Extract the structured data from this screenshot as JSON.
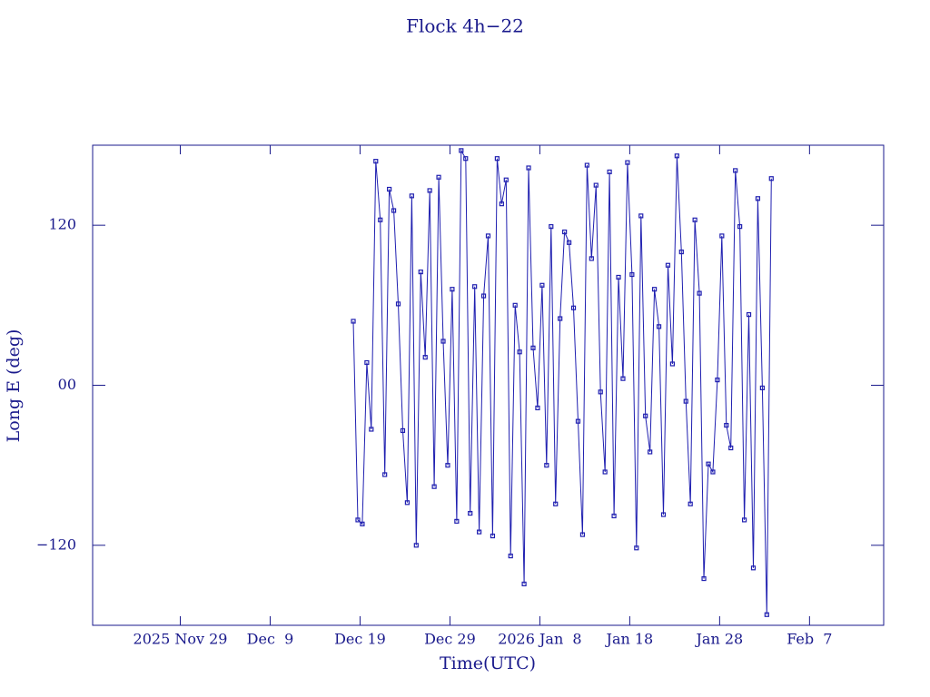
{
  "chart_data": {
    "type": "line",
    "title": "Flock 4h−22",
    "xlabel": "Time(UTC)",
    "ylabel": "Long E (deg)",
    "color": "#1f1fb0",
    "xlim": [
      "2025-11-19 06:00",
      "2026-02-15 06:00"
    ],
    "xticks": [
      {
        "value": "2025-11-29 00:00",
        "label": "2025 Nov 29"
      },
      {
        "value": "2025-12-09 00:00",
        "label": "Dec  9"
      },
      {
        "value": "2025-12-19 00:00",
        "label": "Dec 19"
      },
      {
        "value": "2025-12-29 00:00",
        "label": "Dec 29"
      },
      {
        "value": "2026-01-08 00:00",
        "label": "2026 Jan  8"
      },
      {
        "value": "2026-01-18 00:00",
        "label": "Jan 18"
      },
      {
        "value": "2026-01-28 00:00",
        "label": "Jan 28"
      },
      {
        "value": "2026-02-07 00:00",
        "label": "Feb  7"
      }
    ],
    "ylim": [
      -180,
      180
    ],
    "yticks": [
      {
        "value": -120,
        "label": "−120"
      },
      {
        "value": 0,
        "label": "00"
      },
      120
    ],
    "x": [
      "2025-12-18 06:00",
      "2025-12-18 18:00",
      "2025-12-19 06:00",
      "2025-12-19 18:00",
      "2025-12-20 06:00",
      "2025-12-20 18:00",
      "2025-12-21 06:00",
      "2025-12-21 18:00",
      "2025-12-22 06:00",
      "2025-12-22 18:00",
      "2025-12-23 06:00",
      "2025-12-23 18:00",
      "2025-12-24 06:00",
      "2025-12-24 18:00",
      "2025-12-25 06:00",
      "2025-12-25 18:00",
      "2025-12-26 06:00",
      "2025-12-26 18:00",
      "2025-12-27 06:00",
      "2025-12-27 18:00",
      "2025-12-28 06:00",
      "2025-12-28 18:00",
      "2025-12-29 06:00",
      "2025-12-29 18:00",
      "2025-12-30 06:00",
      "2025-12-30 18:00",
      "2025-12-31 06:00",
      "2025-12-31 18:00",
      "2026-01-01 06:00",
      "2026-01-01 18:00",
      "2026-01-02 06:00",
      "2026-01-02 18:00",
      "2026-01-03 06:00",
      "2026-01-03 18:00",
      "2026-01-04 06:00",
      "2026-01-04 18:00",
      "2026-01-05 06:00",
      "2026-01-05 18:00",
      "2026-01-06 06:00",
      "2026-01-06 18:00",
      "2026-01-07 06:00",
      "2026-01-07 18:00",
      "2026-01-08 06:00",
      "2026-01-08 18:00",
      "2026-01-09 06:00",
      "2026-01-09 18:00",
      "2026-01-10 06:00",
      "2026-01-10 18:00",
      "2026-01-11 06:00",
      "2026-01-11 18:00",
      "2026-01-12 06:00",
      "2026-01-12 18:00",
      "2026-01-13 06:00",
      "2026-01-13 18:00",
      "2026-01-14 06:00",
      "2026-01-14 18:00",
      "2026-01-15 06:00",
      "2026-01-15 18:00",
      "2026-01-16 06:00",
      "2026-01-16 18:00",
      "2026-01-17 06:00",
      "2026-01-17 18:00",
      "2026-01-18 06:00",
      "2026-01-18 18:00",
      "2026-01-19 06:00",
      "2026-01-19 18:00",
      "2026-01-20 06:00",
      "2026-01-20 18:00",
      "2026-01-21 06:00",
      "2026-01-21 18:00",
      "2026-01-22 06:00",
      "2026-01-22 18:00",
      "2026-01-23 06:00",
      "2026-01-23 18:00",
      "2026-01-24 06:00",
      "2026-01-24 18:00",
      "2026-01-25 06:00",
      "2026-01-25 18:00",
      "2026-01-26 06:00",
      "2026-01-26 18:00",
      "2026-01-27 06:00",
      "2026-01-27 18:00",
      "2026-01-28 06:00",
      "2026-01-28 18:00",
      "2026-01-29 06:00",
      "2026-01-29 18:00",
      "2026-01-30 06:00",
      "2026-01-30 18:00",
      "2026-01-31 06:00",
      "2026-01-31 18:00",
      "2026-02-01 06:00",
      "2026-02-01 18:00",
      "2026-02-02 06:00",
      "2026-02-02 18:00"
    ],
    "values": [
      48,
      -101,
      -104,
      17,
      -33,
      168,
      124,
      -67,
      147,
      131,
      61,
      -34,
      -88,
      142,
      -120,
      85,
      21,
      146,
      -76,
      156,
      33,
      -60,
      72,
      -102,
      176,
      170,
      -96,
      74,
      -110,
      67,
      112,
      -113,
      170,
      136,
      154,
      -128,
      60,
      25,
      -149,
      163,
      28,
      -17,
      75,
      -60,
      119,
      -89,
      50,
      115,
      107,
      58,
      -27,
      -112,
      165,
      95,
      150,
      -5,
      -65,
      160,
      -98,
      81,
      5,
      167,
      83,
      -122,
      127,
      -23,
      -50,
      72,
      44,
      -97,
      90,
      16,
      172,
      100,
      -12,
      -89,
      124,
      69,
      -145,
      -59,
      -65,
      4,
      112,
      -30,
      -47,
      161,
      119,
      -101,
      53,
      -137,
      140,
      -2,
      -172,
      155
    ]
  }
}
